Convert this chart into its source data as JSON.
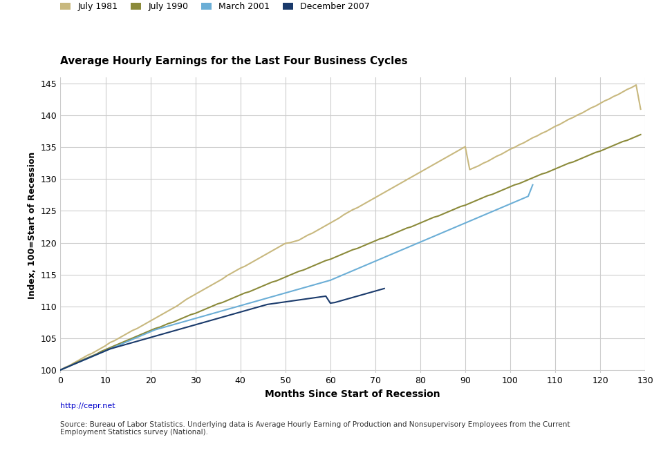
{
  "title": "Average Hourly Earnings for the Last Four Business Cycles",
  "xlabel": "Months Since Start of Recession",
  "ylabel": "Index, 100=Start of Recession",
  "url": "http://cepr.net",
  "source_text": "Source: Bureau of Labor Statistics. Underlying data is Average Hourly Earning of Production and Nonsupervisory Employees from the Current\nEmployment Statistics survey (National).",
  "xlim": [
    0,
    130
  ],
  "ylim": [
    99.5,
    146
  ],
  "yticks": [
    100,
    105,
    110,
    115,
    120,
    125,
    130,
    135,
    140,
    145
  ],
  "xticks": [
    0,
    10,
    20,
    30,
    40,
    50,
    60,
    70,
    80,
    90,
    100,
    110,
    120,
    130
  ],
  "legend_labels": [
    "July 1981",
    "July 1990",
    "March 2001",
    "December 2007"
  ],
  "legend_colors": [
    "#c8b87e",
    "#8b8a3a",
    "#6baed6",
    "#1a3a6b"
  ],
  "bg_color": "#ffffff",
  "grid_color": "#cccccc",
  "series": {
    "july1981": {
      "color": "#c8b87e",
      "x": [
        0,
        1,
        2,
        3,
        4,
        5,
        6,
        7,
        8,
        9,
        10,
        11,
        12,
        13,
        14,
        15,
        16,
        17,
        18,
        19,
        20,
        21,
        22,
        23,
        24,
        25,
        26,
        27,
        28,
        29,
        30,
        31,
        32,
        33,
        34,
        35,
        36,
        37,
        38,
        39,
        40,
        41,
        42,
        43,
        44,
        45,
        46,
        47,
        48,
        49,
        50,
        51,
        52,
        53,
        54,
        55,
        56,
        57,
        58,
        59,
        60,
        61,
        62,
        63,
        64,
        65,
        66,
        67,
        68,
        69,
        70,
        71,
        72,
        73,
        74,
        75,
        76,
        77,
        78,
        79,
        80,
        81,
        82,
        83,
        84,
        85,
        86,
        87,
        88,
        89,
        90,
        91,
        92,
        93,
        94,
        95,
        96,
        97,
        98,
        99,
        100,
        101,
        102,
        103,
        104,
        105,
        106,
        107,
        108,
        109,
        110,
        111,
        112,
        113,
        114,
        115,
        116,
        117,
        118,
        119,
        120,
        121,
        122,
        123,
        124,
        125,
        126,
        127,
        128,
        129
      ],
      "y": [
        100.0,
        100.4,
        100.7,
        101.1,
        101.5,
        101.9,
        102.3,
        102.6,
        103.0,
        103.4,
        103.8,
        104.3,
        104.6,
        105.0,
        105.4,
        105.8,
        106.2,
        106.5,
        106.9,
        107.3,
        107.7,
        108.1,
        108.5,
        108.9,
        109.3,
        109.7,
        110.1,
        110.6,
        111.1,
        111.5,
        111.9,
        112.3,
        112.7,
        113.1,
        113.5,
        113.9,
        114.3,
        114.8,
        115.2,
        115.6,
        116.0,
        116.3,
        116.7,
        117.1,
        117.5,
        117.9,
        118.3,
        118.7,
        119.1,
        119.5,
        119.9,
        120.0,
        120.2,
        120.4,
        120.8,
        121.2,
        121.5,
        121.9,
        122.3,
        122.7,
        123.1,
        123.5,
        123.9,
        124.4,
        124.8,
        125.2,
        125.5,
        125.9,
        126.3,
        126.7,
        127.1,
        127.5,
        127.9,
        128.3,
        128.7,
        129.1,
        129.5,
        129.9,
        130.3,
        130.7,
        131.1,
        131.5,
        131.9,
        132.3,
        132.7,
        133.1,
        133.5,
        133.9,
        134.3,
        134.7,
        135.1,
        131.5,
        131.8,
        132.1,
        132.5,
        132.8,
        133.2,
        133.6,
        133.9,
        134.3,
        134.7,
        135.0,
        135.4,
        135.7,
        136.1,
        136.5,
        136.8,
        137.2,
        137.5,
        137.9,
        138.3,
        138.6,
        139.0,
        139.4,
        139.7,
        140.1,
        140.4,
        140.8,
        141.2,
        141.5,
        141.9,
        142.3,
        142.6,
        143.0,
        143.3,
        143.7,
        144.1,
        144.4,
        144.8,
        141.0
      ]
    },
    "july1990": {
      "color": "#8b8a3a",
      "x": [
        0,
        1,
        2,
        3,
        4,
        5,
        6,
        7,
        8,
        9,
        10,
        11,
        12,
        13,
        14,
        15,
        16,
        17,
        18,
        19,
        20,
        21,
        22,
        23,
        24,
        25,
        26,
        27,
        28,
        29,
        30,
        31,
        32,
        33,
        34,
        35,
        36,
        37,
        38,
        39,
        40,
        41,
        42,
        43,
        44,
        45,
        46,
        47,
        48,
        49,
        50,
        51,
        52,
        53,
        54,
        55,
        56,
        57,
        58,
        59,
        60,
        61,
        62,
        63,
        64,
        65,
        66,
        67,
        68,
        69,
        70,
        71,
        72,
        73,
        74,
        75,
        76,
        77,
        78,
        79,
        80,
        81,
        82,
        83,
        84,
        85,
        86,
        87,
        88,
        89,
        90,
        91,
        92,
        93,
        94,
        95,
        96,
        97,
        98,
        99,
        100,
        101,
        102,
        103,
        104,
        105,
        106,
        107,
        108,
        109,
        110,
        111,
        112,
        113,
        114,
        115,
        116,
        117,
        118,
        119,
        120,
        121,
        122,
        123,
        124,
        125,
        126,
        127,
        128,
        129
      ],
      "y": [
        100.0,
        100.3,
        100.6,
        101.0,
        101.3,
        101.6,
        101.9,
        102.2,
        102.5,
        102.9,
        103.2,
        103.5,
        103.8,
        104.1,
        104.4,
        104.7,
        105.0,
        105.3,
        105.6,
        105.9,
        106.2,
        106.5,
        106.7,
        107.0,
        107.3,
        107.5,
        107.8,
        108.1,
        108.4,
        108.7,
        108.9,
        109.2,
        109.5,
        109.8,
        110.1,
        110.4,
        110.6,
        110.9,
        111.2,
        111.5,
        111.8,
        112.1,
        112.3,
        112.6,
        112.9,
        113.2,
        113.5,
        113.8,
        114.0,
        114.3,
        114.6,
        114.9,
        115.2,
        115.5,
        115.7,
        116.0,
        116.3,
        116.6,
        116.9,
        117.2,
        117.4,
        117.7,
        118.0,
        118.3,
        118.6,
        118.9,
        119.1,
        119.4,
        119.7,
        120.0,
        120.3,
        120.6,
        120.8,
        121.1,
        121.4,
        121.7,
        122.0,
        122.3,
        122.5,
        122.8,
        123.1,
        123.4,
        123.7,
        124.0,
        124.2,
        124.5,
        124.8,
        125.1,
        125.4,
        125.7,
        125.9,
        126.2,
        126.5,
        126.8,
        127.1,
        127.4,
        127.6,
        127.9,
        128.2,
        128.5,
        128.8,
        129.1,
        129.3,
        129.6,
        129.9,
        130.2,
        130.5,
        130.8,
        131.0,
        131.3,
        131.6,
        131.9,
        132.2,
        132.5,
        132.7,
        133.0,
        133.3,
        133.6,
        133.9,
        134.2,
        134.4,
        134.7,
        135.0,
        135.3,
        135.6,
        135.9,
        136.1,
        136.4,
        136.7,
        137.0
      ]
    },
    "march2001": {
      "color": "#6baed6",
      "x": [
        0,
        1,
        2,
        3,
        4,
        5,
        6,
        7,
        8,
        9,
        10,
        11,
        12,
        13,
        14,
        15,
        16,
        17,
        18,
        19,
        20,
        21,
        22,
        23,
        24,
        25,
        26,
        27,
        28,
        29,
        30,
        31,
        32,
        33,
        34,
        35,
        36,
        37,
        38,
        39,
        40,
        41,
        42,
        43,
        44,
        45,
        46,
        47,
        48,
        49,
        50,
        51,
        52,
        53,
        54,
        55,
        56,
        57,
        58,
        59,
        60,
        61,
        62,
        63,
        64,
        65,
        66,
        67,
        68,
        69,
        70,
        71,
        72,
        73,
        74,
        75,
        76,
        77,
        78,
        79,
        80,
        81,
        82,
        83,
        84,
        85,
        86,
        87,
        88,
        89,
        90,
        91,
        92,
        93,
        94,
        95,
        96,
        97,
        98,
        99,
        100,
        101,
        102,
        103,
        104,
        105
      ],
      "y": [
        100.0,
        100.3,
        100.6,
        100.9,
        101.2,
        101.5,
        101.8,
        102.1,
        102.4,
        102.7,
        103.0,
        103.3,
        103.6,
        103.9,
        104.2,
        104.5,
        104.8,
        105.1,
        105.4,
        105.7,
        106.0,
        106.3,
        106.5,
        106.7,
        106.9,
        107.1,
        107.3,
        107.5,
        107.7,
        107.9,
        108.1,
        108.3,
        108.5,
        108.7,
        108.9,
        109.1,
        109.3,
        109.5,
        109.7,
        109.9,
        110.1,
        110.3,
        110.5,
        110.7,
        110.9,
        111.1,
        111.3,
        111.5,
        111.7,
        111.9,
        112.1,
        112.3,
        112.5,
        112.7,
        112.9,
        113.1,
        113.3,
        113.5,
        113.7,
        113.9,
        114.1,
        114.4,
        114.7,
        115.0,
        115.3,
        115.6,
        115.9,
        116.2,
        116.5,
        116.8,
        117.1,
        117.4,
        117.7,
        118.0,
        118.3,
        118.6,
        118.9,
        119.2,
        119.5,
        119.8,
        120.1,
        120.4,
        120.7,
        121.0,
        121.3,
        121.6,
        121.9,
        122.2,
        122.5,
        122.8,
        123.1,
        123.4,
        123.7,
        124.0,
        124.3,
        124.6,
        124.9,
        125.2,
        125.5,
        125.8,
        126.1,
        126.4,
        126.7,
        127.0,
        127.3,
        129.1
      ]
    },
    "december2007": {
      "color": "#1a3a6b",
      "x": [
        0,
        1,
        2,
        3,
        4,
        5,
        6,
        7,
        8,
        9,
        10,
        11,
        12,
        13,
        14,
        15,
        16,
        17,
        18,
        19,
        20,
        21,
        22,
        23,
        24,
        25,
        26,
        27,
        28,
        29,
        30,
        31,
        32,
        33,
        34,
        35,
        36,
        37,
        38,
        39,
        40,
        41,
        42,
        43,
        44,
        45,
        46,
        47,
        48,
        49,
        50,
        51,
        52,
        53,
        54,
        55,
        56,
        57,
        58,
        59,
        60,
        61,
        62,
        63,
        64,
        65,
        66,
        67,
        68,
        69,
        70,
        71,
        72
      ],
      "y": [
        100.0,
        100.3,
        100.6,
        100.9,
        101.2,
        101.5,
        101.8,
        102.1,
        102.4,
        102.7,
        103.0,
        103.3,
        103.5,
        103.7,
        103.9,
        104.1,
        104.3,
        104.5,
        104.7,
        104.9,
        105.1,
        105.3,
        105.5,
        105.7,
        105.9,
        106.1,
        106.3,
        106.5,
        106.7,
        106.9,
        107.1,
        107.3,
        107.5,
        107.7,
        107.9,
        108.1,
        108.3,
        108.5,
        108.7,
        108.9,
        109.1,
        109.3,
        109.5,
        109.7,
        109.9,
        110.1,
        110.3,
        110.4,
        110.5,
        110.6,
        110.7,
        110.8,
        110.9,
        111.0,
        111.1,
        111.2,
        111.3,
        111.4,
        111.5,
        111.6,
        110.5,
        110.6,
        110.8,
        111.0,
        111.2,
        111.4,
        111.6,
        111.8,
        112.0,
        112.2,
        112.4,
        112.6,
        112.8
      ]
    }
  }
}
